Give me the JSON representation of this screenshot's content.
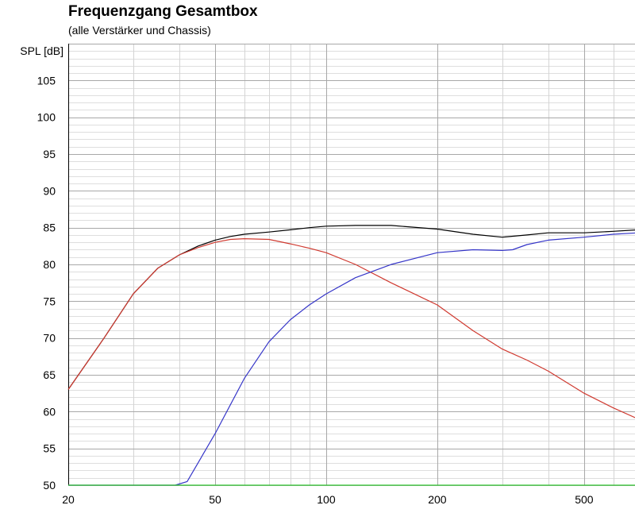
{
  "chart_data": {
    "type": "line",
    "title": "Frequenzgang Gesamtbox",
    "subtitle": "(alle Verstärker und Chassis)",
    "ylabel": "SPL [dB]",
    "xlabel": "",
    "x_scale": "log",
    "grid": true,
    "xlim": [
      20,
      700
    ],
    "ylim": [
      50,
      110
    ],
    "x_ticks": [
      20,
      50,
      100,
      200,
      500
    ],
    "y_ticks": [
      50,
      55,
      60,
      65,
      70,
      75,
      80,
      85,
      90,
      95,
      100,
      105
    ],
    "series": [
      {
        "color": "#000000",
        "x": [
          20,
          25,
          30,
          35,
          40,
          45,
          50,
          55,
          60,
          70,
          80,
          90,
          100,
          120,
          150,
          200,
          250,
          300,
          350,
          400,
          500,
          600,
          700
        ],
        "y": [
          63,
          70,
          76,
          79.5,
          81.3,
          82.5,
          83.3,
          83.8,
          84.1,
          84.4,
          84.7,
          85.0,
          85.2,
          85.3,
          85.3,
          84.8,
          84.1,
          83.7,
          84.0,
          84.3,
          84.3,
          84.5,
          84.7
        ]
      },
      {
        "color": "#d03a30",
        "x": [
          20,
          25,
          30,
          35,
          40,
          45,
          50,
          55,
          60,
          70,
          80,
          90,
          100,
          120,
          150,
          200,
          250,
          300,
          350,
          400,
          500,
          600,
          700
        ],
        "y": [
          63,
          70,
          76,
          79.5,
          81.3,
          82.3,
          83.0,
          83.4,
          83.5,
          83.4,
          82.8,
          82.2,
          81.6,
          80.0,
          77.5,
          74.5,
          71.0,
          68.5,
          67.0,
          65.5,
          62.5,
          60.5,
          59.0
        ]
      },
      {
        "color": "#3535c8",
        "x": [
          20,
          30,
          39,
          42,
          50,
          60,
          70,
          80,
          90,
          100,
          120,
          150,
          200,
          250,
          300,
          320,
          350,
          400,
          500,
          600,
          700
        ],
        "y": [
          50,
          50,
          50,
          50.5,
          57,
          64.5,
          69.5,
          72.5,
          74.5,
          76.0,
          78.2,
          80.0,
          81.6,
          82.0,
          81.9,
          82.0,
          82.7,
          83.3,
          83.7,
          84.1,
          84.3
        ]
      },
      {
        "color": "#33c733",
        "x": [
          20,
          700
        ],
        "y": [
          50,
          50
        ]
      }
    ]
  }
}
